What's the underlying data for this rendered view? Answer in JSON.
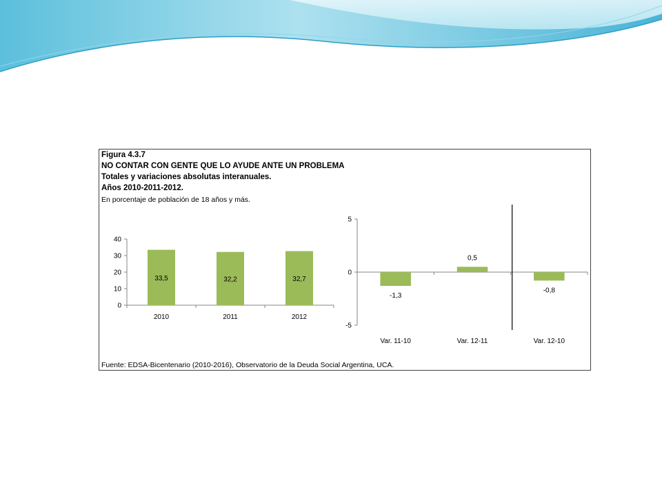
{
  "header": {
    "figure_number": "Figura 4.3.7",
    "title": "NO CONTAR CON GENTE QUE LO AYUDE ANTE UN PROBLEMA",
    "subtitle": "Totales y variaciones absolutas interanuales.",
    "years": "Años 2010-2011-2012.",
    "units": "En porcentaje de población de 18 años y más."
  },
  "source": "Fuente: EDSA-Bicentenario (2010-2016), Observatorio de la Deuda Social Argentina, UCA.",
  "colors": {
    "bar": "#9bbb59",
    "wave_light": "#bfe9f3",
    "wave_mid": "#7cd0e6",
    "wave_dark": "#3fb4d6"
  },
  "chart_data": [
    {
      "type": "bar",
      "title": "",
      "categories": [
        "2010",
        "2011",
        "2012"
      ],
      "values": [
        33.5,
        32.2,
        32.7
      ],
      "data_labels": [
        "33,5",
        "32,2",
        "32,7"
      ],
      "yticks": [
        0,
        10,
        20,
        30,
        40
      ],
      "ylim": [
        0,
        40
      ],
      "xlabel": "",
      "ylabel": "",
      "grid": false,
      "legend": "none"
    },
    {
      "type": "bar",
      "title": "",
      "categories": [
        "Var. 11-10",
        "Var. 12-11",
        "Var. 12-10"
      ],
      "values": [
        -1.3,
        0.5,
        -0.8
      ],
      "data_labels": [
        "-1,3",
        "0,5",
        "-0,8"
      ],
      "yticks": [
        -5,
        0,
        5
      ],
      "ylim": [
        -5,
        5
      ],
      "xlabel": "",
      "ylabel": "",
      "grid": false,
      "legend": "none"
    }
  ]
}
